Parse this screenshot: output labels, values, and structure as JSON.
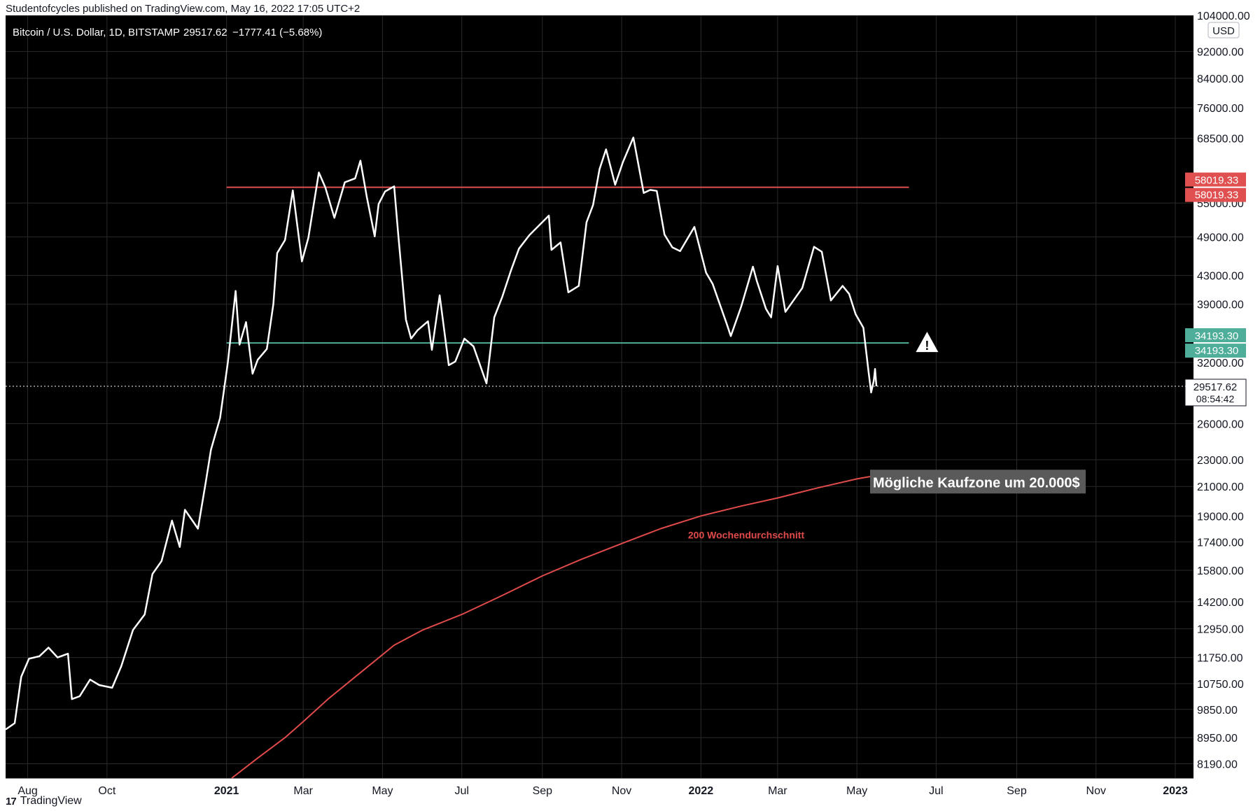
{
  "publisher": "Studentofcycles published on TradingView.com, May 16, 2022 17:05 UTC+2",
  "footer": {
    "logo_icon": "tradingview-logo-icon",
    "brand": "TradingView"
  },
  "colors": {
    "background": "#000000",
    "price_line": "#ffffff",
    "resistance": "#e05050",
    "support": "#4fae9a",
    "ma_line": "#e04a4a",
    "grid": "#2a2a2a"
  },
  "chart_data": {
    "type": "line",
    "symbol_header": "Bitcoin / U.S. Dollar, 1D, BITSTAMP",
    "header_last": "29517.62",
    "header_change": "−1777.41 (−5.68%)",
    "currency": "USD",
    "y_scale": "log",
    "ylim": [
      7800,
      104000
    ],
    "xlim": [
      "2020-07-15",
      "2023-01-15"
    ],
    "top_partial_label": "104000.00",
    "y_ticks": [
      "92000.00",
      "84000.00",
      "76000.00",
      "68500.00",
      "55000.00",
      "49000.00",
      "43000.00",
      "39000.00",
      "32000.00",
      "26000.00",
      "23000.00",
      "21000.00",
      "19000.00",
      "17400.00",
      "15800.00",
      "14200.00",
      "12950.00",
      "11750.00",
      "10750.00",
      "9850.00",
      "8950.00",
      "8190.00"
    ],
    "x_ticks": [
      {
        "label": "Aug",
        "date": "2020-08-01",
        "bold": false
      },
      {
        "label": "Oct",
        "date": "2020-10-01",
        "bold": false
      },
      {
        "label": "2021",
        "date": "2021-01-01",
        "bold": true
      },
      {
        "label": "Mar",
        "date": "2021-03-01",
        "bold": false
      },
      {
        "label": "May",
        "date": "2021-05-01",
        "bold": false
      },
      {
        "label": "Jul",
        "date": "2021-07-01",
        "bold": false
      },
      {
        "label": "Sep",
        "date": "2021-09-01",
        "bold": false
      },
      {
        "label": "Nov",
        "date": "2021-11-01",
        "bold": false
      },
      {
        "label": "2022",
        "date": "2022-01-01",
        "bold": true
      },
      {
        "label": "Mar",
        "date": "2022-03-01",
        "bold": false
      },
      {
        "label": "May",
        "date": "2022-05-01",
        "bold": false
      },
      {
        "label": "Jul",
        "date": "2022-07-01",
        "bold": false
      },
      {
        "label": "Sep",
        "date": "2022-09-01",
        "bold": false
      },
      {
        "label": "Nov",
        "date": "2022-11-01",
        "bold": false
      },
      {
        "label": "2023",
        "date": "2023-01-01",
        "bold": true
      }
    ],
    "series": [
      {
        "kind": "price",
        "points": [
          [
            "2020-07-15",
            9200
          ],
          [
            "2020-07-22",
            9400
          ],
          [
            "2020-07-27",
            11000
          ],
          [
            "2020-08-02",
            11700
          ],
          [
            "2020-08-10",
            11800
          ],
          [
            "2020-08-17",
            12150
          ],
          [
            "2020-08-24",
            11750
          ],
          [
            "2020-09-01",
            11900
          ],
          [
            "2020-09-04",
            10200
          ],
          [
            "2020-09-10",
            10300
          ],
          [
            "2020-09-18",
            10900
          ],
          [
            "2020-09-25",
            10700
          ],
          [
            "2020-10-05",
            10600
          ],
          [
            "2020-10-12",
            11400
          ],
          [
            "2020-10-21",
            12900
          ],
          [
            "2020-10-30",
            13600
          ],
          [
            "2020-11-05",
            15600
          ],
          [
            "2020-11-12",
            16300
          ],
          [
            "2020-11-20",
            18700
          ],
          [
            "2020-11-26",
            17100
          ],
          [
            "2020-11-30",
            19400
          ],
          [
            "2020-12-10",
            18200
          ],
          [
            "2020-12-16",
            21300
          ],
          [
            "2020-12-20",
            23800
          ],
          [
            "2020-12-27",
            26500
          ],
          [
            "2021-01-02",
            32000
          ],
          [
            "2021-01-08",
            40800
          ],
          [
            "2021-01-11",
            34000
          ],
          [
            "2021-01-16",
            36700
          ],
          [
            "2021-01-21",
            30800
          ],
          [
            "2021-01-25",
            32300
          ],
          [
            "2021-02-01",
            33500
          ],
          [
            "2021-02-06",
            39000
          ],
          [
            "2021-02-09",
            46400
          ],
          [
            "2021-02-15",
            48500
          ],
          [
            "2021-02-21",
            57400
          ],
          [
            "2021-02-28",
            45100
          ],
          [
            "2021-03-05",
            48900
          ],
          [
            "2021-03-13",
            61000
          ],
          [
            "2021-03-18",
            58000
          ],
          [
            "2021-03-25",
            52300
          ],
          [
            "2021-04-02",
            59000
          ],
          [
            "2021-04-10",
            59800
          ],
          [
            "2021-04-14",
            63500
          ],
          [
            "2021-04-19",
            56000
          ],
          [
            "2021-04-25",
            49100
          ],
          [
            "2021-04-28",
            54800
          ],
          [
            "2021-05-03",
            57200
          ],
          [
            "2021-05-10",
            58200
          ],
          [
            "2021-05-13",
            49700
          ],
          [
            "2021-05-19",
            37000
          ],
          [
            "2021-05-23",
            34700
          ],
          [
            "2021-05-28",
            35700
          ],
          [
            "2021-06-05",
            36800
          ],
          [
            "2021-06-08",
            33400
          ],
          [
            "2021-06-14",
            40200
          ],
          [
            "2021-06-21",
            31700
          ],
          [
            "2021-06-26",
            32100
          ],
          [
            "2021-07-03",
            34700
          ],
          [
            "2021-07-10",
            33800
          ],
          [
            "2021-07-20",
            29800
          ],
          [
            "2021-07-26",
            37300
          ],
          [
            "2021-08-01",
            39900
          ],
          [
            "2021-08-08",
            43800
          ],
          [
            "2021-08-14",
            47100
          ],
          [
            "2021-08-22",
            49300
          ],
          [
            "2021-09-06",
            52700
          ],
          [
            "2021-09-08",
            46900
          ],
          [
            "2021-09-15",
            48100
          ],
          [
            "2021-09-21",
            40600
          ],
          [
            "2021-09-29",
            41500
          ],
          [
            "2021-10-05",
            51500
          ],
          [
            "2021-10-10",
            54600
          ],
          [
            "2021-10-15",
            61700
          ],
          [
            "2021-10-20",
            66000
          ],
          [
            "2021-10-27",
            58500
          ],
          [
            "2021-11-02",
            63200
          ],
          [
            "2021-11-10",
            68700
          ],
          [
            "2021-11-18",
            56900
          ],
          [
            "2021-11-23",
            57500
          ],
          [
            "2021-11-28",
            57300
          ],
          [
            "2021-12-04",
            49400
          ],
          [
            "2021-12-10",
            47300
          ],
          [
            "2021-12-16",
            46700
          ],
          [
            "2021-12-27",
            50700
          ],
          [
            "2022-01-05",
            43400
          ],
          [
            "2022-01-10",
            41800
          ],
          [
            "2022-01-21",
            36400
          ],
          [
            "2022-01-24",
            35000
          ],
          [
            "2022-02-01",
            38700
          ],
          [
            "2022-02-10",
            44300
          ],
          [
            "2022-02-13",
            42200
          ],
          [
            "2022-02-20",
            38400
          ],
          [
            "2022-02-24",
            37300
          ],
          [
            "2022-03-01",
            44400
          ],
          [
            "2022-03-07",
            38000
          ],
          [
            "2022-03-14",
            39700
          ],
          [
            "2022-03-20",
            41200
          ],
          [
            "2022-03-29",
            47400
          ],
          [
            "2022-04-04",
            46600
          ],
          [
            "2022-04-11",
            39500
          ],
          [
            "2022-04-20",
            41500
          ],
          [
            "2022-04-25",
            40400
          ],
          [
            "2022-04-30",
            37700
          ],
          [
            "2022-05-06",
            36000
          ],
          [
            "2022-05-10",
            31000
          ],
          [
            "2022-05-12",
            28900
          ],
          [
            "2022-05-14",
            30100
          ],
          [
            "2022-05-15",
            31300
          ],
          [
            "2022-05-16",
            29517.62
          ]
        ]
      },
      {
        "kind": "ma",
        "points": [
          [
            "2021-01-05",
            7800
          ],
          [
            "2021-01-25",
            8350
          ],
          [
            "2021-02-15",
            8950
          ],
          [
            "2021-03-01",
            9450
          ],
          [
            "2021-03-20",
            10200
          ],
          [
            "2021-04-15",
            11200
          ],
          [
            "2021-05-10",
            12250
          ],
          [
            "2021-06-01",
            12900
          ],
          [
            "2021-07-01",
            13600
          ],
          [
            "2021-08-01",
            14500
          ],
          [
            "2021-09-01",
            15500
          ],
          [
            "2021-10-01",
            16400
          ],
          [
            "2021-11-01",
            17300
          ],
          [
            "2021-12-01",
            18200
          ],
          [
            "2022-01-01",
            19000
          ],
          [
            "2022-02-01",
            19650
          ],
          [
            "2022-03-01",
            20200
          ],
          [
            "2022-04-01",
            20900
          ],
          [
            "2022-05-01",
            21550
          ],
          [
            "2022-05-16",
            21800
          ]
        ]
      }
    ],
    "hlines": [
      {
        "kind": "resistance",
        "value": 58019.33,
        "from": "2021-01-01",
        "to": "2022-06-10",
        "label": "58019.33"
      },
      {
        "kind": "support",
        "value": 34193.3,
        "from": "2021-01-01",
        "to": "2022-06-10",
        "label": "34193.30"
      }
    ],
    "last_price": {
      "value": 29517.62,
      "label": "29517.62",
      "countdown": "08:54:42"
    },
    "annotations": {
      "ma_label": "200 Wochendurchschnitt",
      "buy_zone": "Mögliche Kaufzone um 20.000$",
      "warning_icon": "warning-triangle-icon"
    }
  }
}
